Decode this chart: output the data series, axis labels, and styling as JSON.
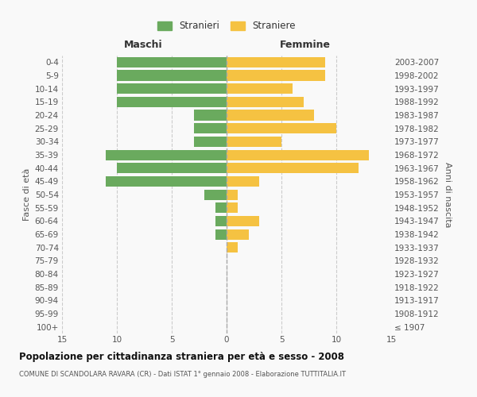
{
  "age_groups": [
    "100+",
    "95-99",
    "90-94",
    "85-89",
    "80-84",
    "75-79",
    "70-74",
    "65-69",
    "60-64",
    "55-59",
    "50-54",
    "45-49",
    "40-44",
    "35-39",
    "30-34",
    "25-29",
    "20-24",
    "15-19",
    "10-14",
    "5-9",
    "0-4"
  ],
  "birth_years": [
    "≤ 1907",
    "1908-1912",
    "1913-1917",
    "1918-1922",
    "1923-1927",
    "1928-1932",
    "1933-1937",
    "1938-1942",
    "1943-1947",
    "1948-1952",
    "1953-1957",
    "1958-1962",
    "1963-1967",
    "1968-1972",
    "1973-1977",
    "1978-1982",
    "1983-1987",
    "1988-1992",
    "1993-1997",
    "1998-2002",
    "2003-2007"
  ],
  "maschi": [
    0,
    0,
    0,
    0,
    0,
    0,
    0,
    1,
    1,
    1,
    2,
    11,
    10,
    11,
    3,
    3,
    3,
    10,
    10,
    10,
    10
  ],
  "femmine": [
    0,
    0,
    0,
    0,
    0,
    0,
    1,
    2,
    3,
    1,
    1,
    3,
    12,
    13,
    5,
    10,
    8,
    7,
    6,
    9,
    9
  ],
  "maschi_color": "#6aaa5e",
  "femmine_color": "#f5c242",
  "background_color": "#f9f9f9",
  "grid_color": "#cccccc",
  "title": "Popolazione per cittadinanza straniera per età e sesso - 2008",
  "subtitle": "COMUNE DI SCANDOLARA RAVARA (CR) - Dati ISTAT 1° gennaio 2008 - Elaborazione TUTTITALIA.IT",
  "xlabel_left": "Maschi",
  "xlabel_right": "Femmine",
  "ylabel_left": "Fasce di età",
  "ylabel_right": "Anni di nascita",
  "legend_stranieri": "Stranieri",
  "legend_straniere": "Straniere",
  "xlim": 15
}
